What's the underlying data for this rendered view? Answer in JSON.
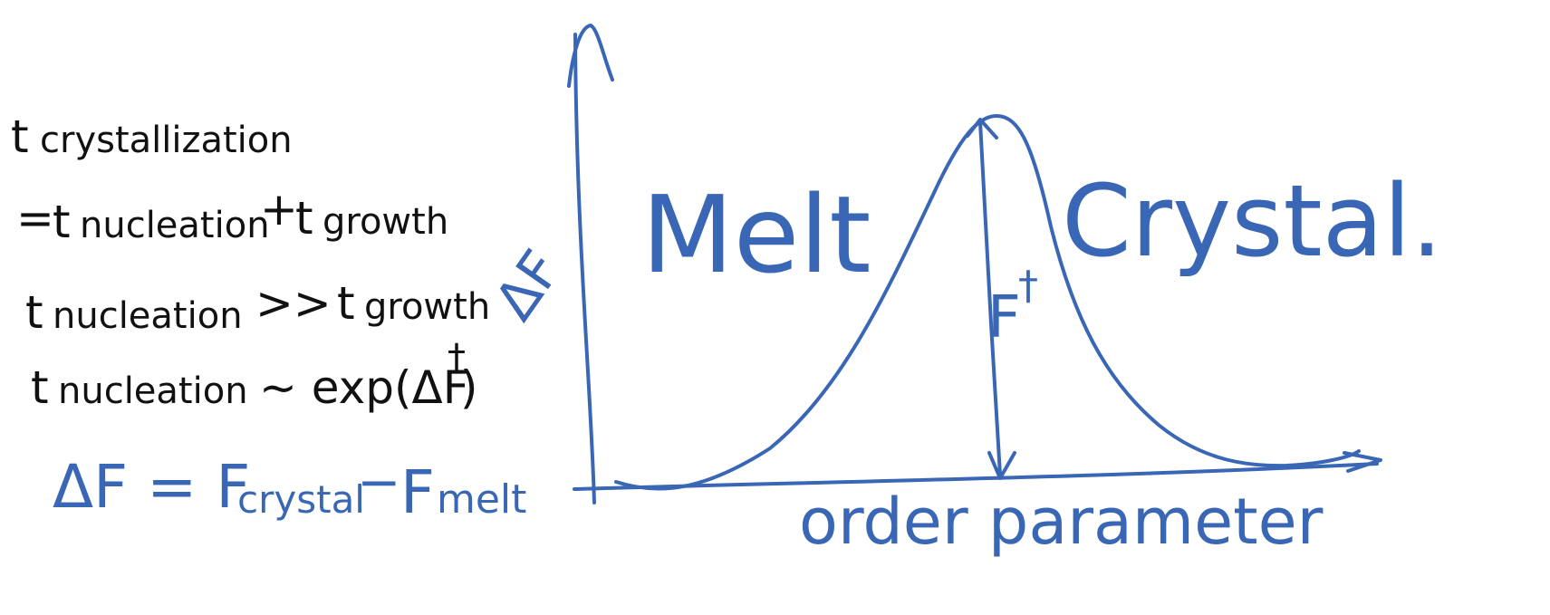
{
  "equations": {
    "line1_t": "t",
    "line1_sub": "crystallization",
    "line2_eq": "=",
    "line2_t1": "t",
    "line2_sub1": "nucleation",
    "line2_plus": "+",
    "line2_t2": "t",
    "line2_sub2": "growth",
    "line3_t1": "t",
    "line3_sub1": "nucleation",
    "line3_op": ">>",
    "line3_t2": "t",
    "line3_sub2": "growth",
    "line4_t": "t",
    "line4_sub": "nucleation",
    "line4_rel": "∼ exp(ΔF",
    "line4_sup": "†",
    "line4_close": ")",
    "delta_f_def": "ΔF = F",
    "delta_f_sub1": "crystal",
    "delta_f_minus": "−",
    "delta_f_f2": "F",
    "delta_f_sub2": "melt"
  },
  "diagram": {
    "y_axis_label": "ΔF",
    "x_axis_label": "order parameter",
    "left_well_label": "Melt",
    "right_well_label": "Crystal.",
    "barrier_label": "F",
    "barrier_sup": "†"
  },
  "colors": {
    "ink_black": "#111111",
    "ink_blue": "#3a67b5"
  }
}
